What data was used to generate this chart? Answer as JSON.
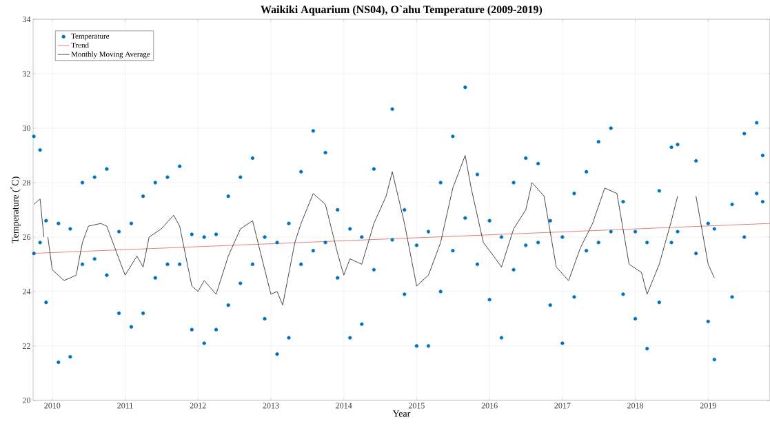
{
  "chart_data": {
    "type": "scatter",
    "title": "Waikiki Aquarium (NS04), O`ahu Temperature (2009-2019)",
    "xlabel": "Year",
    "ylabel": "Temperature ($^{°}$C)",
    "xlim": [
      "2009-09-27",
      "2019-11-06"
    ],
    "ylim": [
      20,
      34
    ],
    "xticks": [
      "2010",
      "2011",
      "2012",
      "2013",
      "2014",
      "2015",
      "2016",
      "2017",
      "2018",
      "2019"
    ],
    "yticks": [
      20,
      22,
      24,
      26,
      28,
      30,
      32,
      34
    ],
    "grid": true,
    "legend": "top left",
    "series": [
      {
        "name": "Temperature",
        "marker": "circle",
        "color": "#0072bd",
        "x": [
          "2009-10",
          "2009-10",
          "2009-11",
          "2009-11",
          "2009-12",
          "2009-12",
          "2010-02",
          "2010-02",
          "2010-04",
          "2010-04",
          "2010-06",
          "2010-06",
          "2010-08",
          "2010-08",
          "2010-10",
          "2010-10",
          "2010-12",
          "2010-12",
          "2011-02",
          "2011-02",
          "2011-04",
          "2011-04",
          "2011-06",
          "2011-06",
          "2011-08",
          "2011-08",
          "2011-10",
          "2011-10",
          "2011-12",
          "2011-12",
          "2012-02",
          "2012-02",
          "2012-04",
          "2012-04",
          "2012-06",
          "2012-06",
          "2012-08",
          "2012-08",
          "2012-10",
          "2012-10",
          "2012-12",
          "2012-12",
          "2013-02",
          "2013-02",
          "2013-04",
          "2013-04",
          "2013-06",
          "2013-06",
          "2013-08",
          "2013-08",
          "2013-10",
          "2013-10",
          "2013-12",
          "2013-12",
          "2014-02",
          "2014-02",
          "2014-04",
          "2014-04",
          "2014-06",
          "2014-06",
          "2014-09",
          "2014-09",
          "2014-11",
          "2014-11",
          "2015-01",
          "2015-01",
          "2015-03",
          "2015-03",
          "2015-05",
          "2015-05",
          "2015-07",
          "2015-07",
          "2015-09",
          "2015-09",
          "2015-11",
          "2015-11",
          "2016-01",
          "2016-01",
          "2016-03",
          "2016-03",
          "2016-05",
          "2016-05",
          "2016-07",
          "2016-07",
          "2016-09",
          "2016-09",
          "2016-11",
          "2016-11",
          "2017-01",
          "2017-01",
          "2017-03",
          "2017-03",
          "2017-05",
          "2017-05",
          "2017-07",
          "2017-07",
          "2017-09",
          "2017-09",
          "2017-11",
          "2017-11",
          "2018-01",
          "2018-01",
          "2018-03",
          "2018-03",
          "2018-05",
          "2018-05",
          "2018-07",
          "2018-07",
          "2018-08",
          "2018-08",
          "2018-11",
          "2018-11",
          "2019-01",
          "2019-01",
          "2019-02",
          "2019-02",
          "2019-05",
          "2019-05",
          "2019-07",
          "2019-07",
          "2019-09",
          "2019-09",
          "2019-10",
          "2019-10"
        ],
        "values": [
          29.7,
          25.4,
          29.2,
          25.8,
          26.6,
          23.6,
          26.5,
          21.4,
          26.3,
          21.6,
          28.0,
          25.0,
          28.2,
          25.2,
          28.5,
          24.6,
          26.2,
          23.2,
          26.5,
          22.7,
          27.5,
          23.2,
          28.0,
          24.5,
          28.2,
          25.0,
          28.6,
          25.0,
          26.1,
          22.6,
          26.0,
          22.1,
          26.1,
          22.6,
          27.5,
          23.5,
          28.2,
          24.3,
          28.9,
          25.0,
          26.0,
          23.0,
          25.8,
          21.7,
          26.5,
          22.3,
          28.4,
          25.0,
          29.9,
          25.5,
          29.1,
          25.8,
          27.0,
          24.5,
          26.3,
          22.3,
          26.0,
          22.8,
          28.5,
          24.8,
          30.7,
          25.9,
          27.0,
          23.9,
          25.7,
          22.0,
          26.2,
          22.0,
          28.0,
          24.0,
          29.7,
          25.5,
          31.5,
          26.7,
          28.3,
          25.0,
          26.6,
          23.7,
          26.0,
          22.3,
          28.0,
          24.8,
          28.9,
          25.7,
          28.7,
          25.8,
          26.6,
          23.5,
          26.0,
          22.1,
          27.6,
          23.8,
          28.4,
          25.5,
          29.5,
          25.8,
          30.0,
          26.2,
          27.3,
          23.9,
          26.2,
          23.0,
          25.8,
          21.9,
          27.7,
          23.6,
          29.3,
          25.8,
          29.4,
          26.2,
          28.8,
          25.4,
          26.5,
          22.9,
          26.3,
          21.5,
          27.2,
          23.8,
          29.8,
          26.0,
          30.2,
          27.6,
          29.0,
          27.3
        ]
      },
      {
        "name": "Trend",
        "type": "line",
        "color": "#d95f5f",
        "x": [
          "2009-09-27",
          "2019-11-06"
        ],
        "values": [
          25.4,
          26.5
        ]
      },
      {
        "name": "Monthly Moving Average",
        "type": "line",
        "color": "#1a1a1a",
        "x": [
          "2009-10",
          "2009-11",
          "2009-11-20",
          "2009-12-01",
          "2009-12-10",
          "2010-01",
          "2010-03",
          "2010-05",
          "2010-06",
          "2010-07",
          "2010-09",
          "2010-10",
          "2010-12",
          "2011-01",
          "2011-03",
          "2011-04",
          "2011-05",
          "2011-07",
          "2011-09",
          "2011-10",
          "2011-12",
          "2012-01",
          "2012-02",
          "2012-04",
          "2012-06",
          "2012-08",
          "2012-10",
          "2012-12",
          "2013-01",
          "2013-02",
          "2013-03",
          "2013-05",
          "2013-06",
          "2013-08",
          "2013-10",
          "2013-12",
          "2014-01",
          "2014-02",
          "2014-04",
          "2014-06",
          "2014-08",
          "2014-09",
          "2014-11",
          "2015-01",
          "2015-03",
          "2015-05",
          "2015-07",
          "2015-09",
          "2015-10",
          "2015-12",
          "2016-02",
          "2016-03",
          "2016-05",
          "2016-07",
          "2016-08",
          "2016-10",
          "2016-12",
          "2017-02",
          "2017-04",
          "2017-06",
          "2017-08",
          "2017-10",
          "2017-12",
          "2018-02",
          "2018-03",
          "2018-05",
          "2018-07",
          "2018-08",
          "2018-10",
          "2018-11",
          "2019-01",
          "2019-02"
        ],
        "values": [
          27.2,
          27.4,
          26.0,
          null,
          26.0,
          24.8,
          24.4,
          24.6,
          25.8,
          26.4,
          26.5,
          26.4,
          25.2,
          24.6,
          25.3,
          24.9,
          26.0,
          26.3,
          26.8,
          26.4,
          24.2,
          24.0,
          24.4,
          23.9,
          25.3,
          26.3,
          26.6,
          24.8,
          23.9,
          24.0,
          23.5,
          25.8,
          26.5,
          27.6,
          27.2,
          25.4,
          24.6,
          25.2,
          25.0,
          26.5,
          27.5,
          28.4,
          26.5,
          24.2,
          24.6,
          25.8,
          27.8,
          29.0,
          27.8,
          25.8,
          25.2,
          24.9,
          26.3,
          27.0,
          28.0,
          27.5,
          24.9,
          24.4,
          25.6,
          26.5,
          27.8,
          27.6,
          25.0,
          24.7,
          23.9,
          25.0,
          26.6,
          27.5,
          null,
          27.5,
          25.0,
          24.5
        ]
      }
    ]
  }
}
